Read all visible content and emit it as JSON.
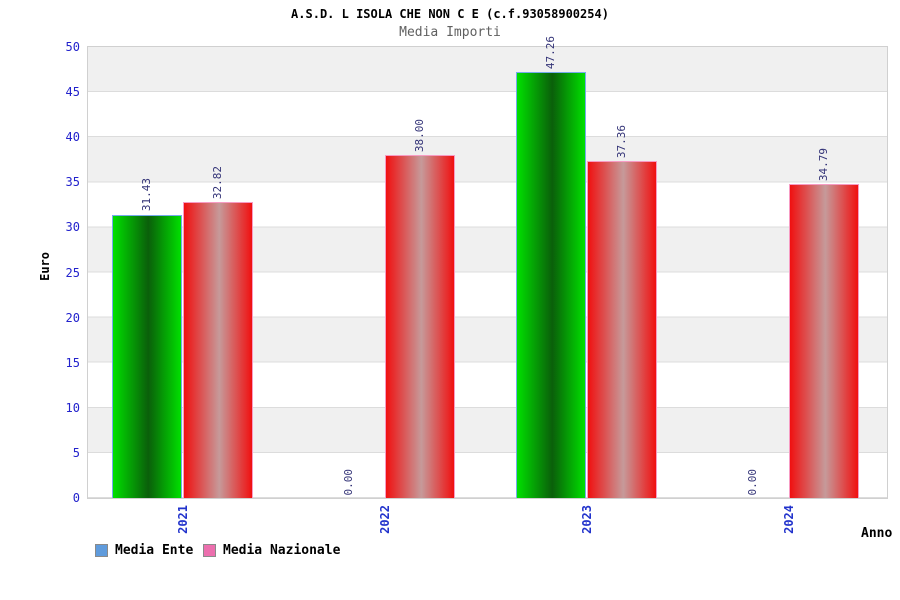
{
  "chart_data": {
    "type": "bar",
    "title": "A.S.D. L ISOLA CHE NON C E (c.f.93058900254)",
    "subtitle": "Media Importi",
    "xlabel": "Anno",
    "ylabel": "Euro",
    "categories": [
      "2021",
      "2022",
      "2023",
      "2024"
    ],
    "series": [
      {
        "name": "Media Ente",
        "values": [
          31.43,
          0.0,
          47.26,
          0.0
        ],
        "legend_color": "#5f9bdc",
        "bar_edge_color": "#00e000",
        "bar_center_color": "#0a5f0a",
        "bar_border_color": "#76aaec"
      },
      {
        "name": "Media Nazionale",
        "values": [
          32.82,
          38.0,
          37.36,
          34.79
        ],
        "legend_color": "#ec6fae",
        "bar_edge_color": "#f01010",
        "bar_center_color": "#c69a9a",
        "bar_border_color": "#f79cc4"
      }
    ],
    "ylim": [
      0,
      50
    ],
    "ytick_step": 5,
    "value_label_decimals": 2,
    "grid": "horizontal-bands",
    "legend_position": "bottom-left",
    "colors": {
      "tick_label": "#2222cc",
      "year_label": "#2233cc",
      "value_label": "#333377",
      "band_light": "#ffffff",
      "band_dark": "#f0f0f0",
      "gridline": "#dcdcdc",
      "plot_border": "#d0d0d0",
      "subtitle": "#606060"
    }
  }
}
